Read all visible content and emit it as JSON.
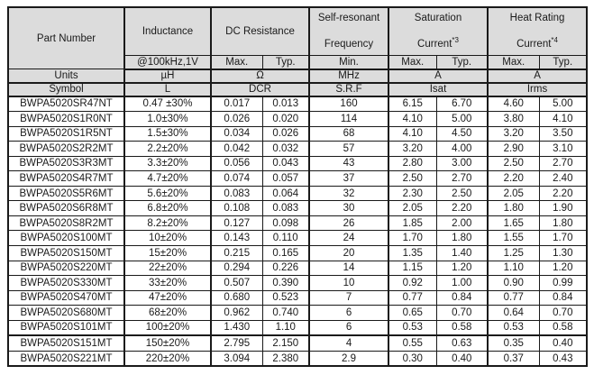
{
  "colors": {
    "header_bg": "#dcdcdc",
    "border": "#1a1a1a",
    "row_bg": "#ffffff",
    "text": "#1a1a1a"
  },
  "table": {
    "header": {
      "part_number": "Part Number",
      "inductance_title": "Inductance",
      "dc_resistance_title": "DC Resistance",
      "srf_line1": "Self-resonant",
      "srf_line2": "Frequency",
      "saturation_line1": "Saturation",
      "saturation_line2": "Current",
      "saturation_sup": "*3",
      "heat_line1": "Heat Rating",
      "heat_line2": "Current",
      "heat_sup": "*4",
      "sub_row": [
        "@100kHz,1V",
        "Max.",
        "Typ.",
        "Min.",
        "Max.",
        "Typ.",
        "Max.",
        "Typ."
      ],
      "units_row": [
        "Units",
        "µH",
        "Ω",
        "MHz",
        "A",
        "A"
      ],
      "symbol_row": [
        "Symbol",
        "L",
        "DCR",
        "S.R.F",
        "Isat",
        "Irms"
      ]
    },
    "rows": [
      [
        "BWPA5020SR47NT",
        "0.47 ±30%",
        "0.017",
        "0.013",
        "160",
        "6.15",
        "6.70",
        "4.60",
        "5.00"
      ],
      [
        "BWPA5020S1R0NT",
        "1.0±30%",
        "0.026",
        "0.020",
        "114",
        "4.10",
        "5.00",
        "3.80",
        "4.10"
      ],
      [
        "BWPA5020S1R5NT",
        "1.5±30%",
        "0.034",
        "0.026",
        "68",
        "4.10",
        "4.50",
        "3.20",
        "3.50"
      ],
      [
        "BWPA5020S2R2MT",
        "2.2±20%",
        "0.042",
        "0.032",
        "57",
        "3.20",
        "4.00",
        "2.90",
        "3.10"
      ],
      [
        "BWPA5020S3R3MT",
        "3.3±20%",
        "0.056",
        "0.043",
        "43",
        "2.80",
        "3.00",
        "2.50",
        "2.70"
      ],
      [
        "BWPA5020S4R7MT",
        "4.7±20%",
        "0.074",
        "0.057",
        "37",
        "2.50",
        "2.70",
        "2.20",
        "2.40"
      ],
      [
        "BWPA5020S5R6MT",
        "5.6±20%",
        "0.083",
        "0.064",
        "32",
        "2.30",
        "2.50",
        "2.05",
        "2.20"
      ],
      [
        "BWPA5020S6R8MT",
        "6.8±20%",
        "0.108",
        "0.083",
        "30",
        "2.05",
        "2.20",
        "1.80",
        "1.90"
      ],
      [
        "BWPA5020S8R2MT",
        "8.2±20%",
        "0.127",
        "0.098",
        "26",
        "1.85",
        "2.00",
        "1.65",
        "1.80"
      ],
      [
        "BWPA5020S100MT",
        "10±20%",
        "0.143",
        "0.110",
        "24",
        "1.70",
        "1.80",
        "1.55",
        "1.70"
      ],
      [
        "BWPA5020S150MT",
        "15±20%",
        "0.215",
        "0.165",
        "20",
        "1.35",
        "1.40",
        "1.25",
        "1.30"
      ],
      [
        "BWPA5020S220MT",
        "22±20%",
        "0.294",
        "0.226",
        "14",
        "1.15",
        "1.20",
        "1.10",
        "1.20"
      ],
      [
        "BWPA5020S330MT",
        "33±20%",
        "0.507",
        "0.390",
        "10",
        "0.92",
        "1.00",
        "0.90",
        "0.99"
      ],
      [
        "BWPA5020S470MT",
        "47±20%",
        "0.680",
        "0.523",
        "7",
        "0.77",
        "0.84",
        "0.77",
        "0.84"
      ],
      [
        "BWPA5020S680MT",
        "68±20%",
        "0.962",
        "0.740",
        "6",
        "0.65",
        "0.70",
        "0.64",
        "0.70"
      ],
      [
        "BWPA5020S101MT",
        "100±20%",
        "1.430",
        "1.10",
        "6",
        "0.53",
        "0.58",
        "0.53",
        "0.58"
      ],
      [
        "BWPA5020S151MT",
        "150±20%",
        "2.795",
        "2.150",
        "4",
        "0.55",
        "0.63",
        "0.35",
        "0.40"
      ],
      [
        "BWPA5020S221MT",
        "220±20%",
        "3.094",
        "2.380",
        "2.9",
        "0.30",
        "0.40",
        "0.37",
        "0.43"
      ]
    ]
  }
}
